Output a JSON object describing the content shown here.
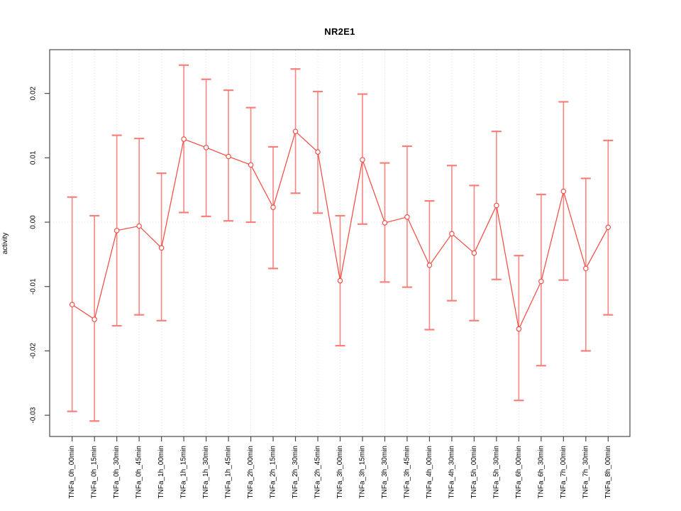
{
  "figure": {
    "title": "NR2E1",
    "ylabel": "activity"
  },
  "chart_data": {
    "type": "line",
    "title": "NR2E1",
    "xlabel": "",
    "ylabel": "activity",
    "legend": "none",
    "marker": "open-circle",
    "error_bars": true,
    "categories": [
      "TNFa_0h_00min",
      "TNFa_0h_15min",
      "TNFa_0h_30min",
      "TNFa_0h_45min",
      "TNFa_1h_00min",
      "TNFa_1h_15min",
      "TNFa_1h_30min",
      "TNFa_1h_45min",
      "TNFa_2h_00min",
      "TNFa_2h_15min",
      "TNFa_2h_30min",
      "TNFa_2h_45min",
      "TNFa_3h_00min",
      "TNFa_3h_15min",
      "TNFa_3h_30min",
      "TNFa_3h_45min",
      "TNFa_4h_00min",
      "TNFa_4h_30min",
      "TNFa_5h_00min",
      "TNFa_5h_30min",
      "TNFa_6h_00min",
      "TNFa_6h_30min",
      "TNFa_7h_00min",
      "TNFa_7h_30min",
      "TNFa_8h_00min"
    ],
    "series": [
      {
        "name": "activity",
        "values": [
          -0.0128,
          -0.0151,
          -0.0013,
          -0.0006,
          -0.004,
          0.0129,
          0.0116,
          0.0102,
          0.0089,
          0.0023,
          0.0141,
          0.0109,
          -0.0091,
          0.0097,
          -0.0001,
          0.0008,
          -0.0067,
          -0.0018,
          -0.0048,
          0.0026,
          -0.0166,
          -0.0092,
          0.0048,
          -0.0072,
          -0.0008
        ],
        "error_low": [
          -0.0294,
          -0.0309,
          -0.0161,
          -0.0144,
          -0.0153,
          0.0015,
          0.0009,
          0.0002,
          0.0,
          -0.0072,
          0.0045,
          0.0014,
          -0.0192,
          -0.0003,
          -0.0093,
          -0.0101,
          -0.0167,
          -0.0122,
          -0.0153,
          -0.0089,
          -0.0277,
          -0.0223,
          -0.009,
          -0.02,
          -0.0144
        ],
        "error_high": [
          0.0039,
          0.001,
          0.0135,
          0.013,
          0.0076,
          0.0244,
          0.0222,
          0.0205,
          0.0178,
          0.0117,
          0.0238,
          0.0203,
          0.001,
          0.0199,
          0.0092,
          0.0118,
          0.0033,
          0.0088,
          0.0057,
          0.0141,
          -0.0052,
          0.0043,
          0.0187,
          0.0068,
          0.0127
        ]
      }
    ],
    "yticks": [
      -0.03,
      -0.02,
      -0.01,
      0,
      0.01,
      0.02
    ],
    "ytick_labels": [
      "-0.03",
      "-0.02",
      "-0.01",
      "0.00",
      "0.01",
      "0.02"
    ],
    "ylim": [
      -0.0333,
      0.0268
    ],
    "grid": "dotted vertical line at each category; dotted horizontal line at y=0",
    "colors": {
      "series": "#f4463f",
      "error_bar": "#f87a74",
      "grid": "#dcdcdc",
      "axis": "#4a4a4a",
      "text": "#000000"
    }
  }
}
